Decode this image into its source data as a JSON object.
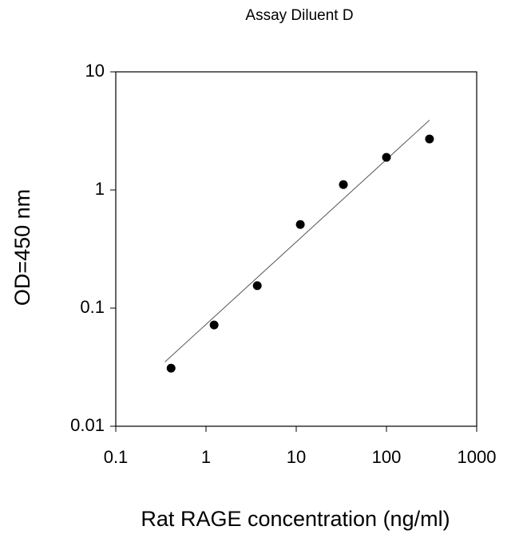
{
  "chart_data": {
    "type": "scatter",
    "title": "Assay Diluent D",
    "xlabel": "Rat RAGE concentration (ng/ml)",
    "ylabel": "OD=450 nm",
    "x": [
      0.41,
      1.23,
      3.7,
      11.1,
      33.3,
      100,
      300
    ],
    "values": [
      0.031,
      0.072,
      0.155,
      0.51,
      1.11,
      1.89,
      2.7
    ],
    "color": "#000000",
    "fit_line": {
      "x": [
        0.35,
        300
      ],
      "y": [
        0.035,
        3.9
      ],
      "color": "#555555"
    },
    "xscale": "log",
    "yscale": "log",
    "xlim": [
      0.1,
      1000
    ],
    "ylim": [
      0.01,
      10
    ],
    "xticks": [
      0.1,
      1,
      10,
      100,
      1000
    ],
    "yticks": [
      0.01,
      0.1,
      1,
      10
    ]
  }
}
